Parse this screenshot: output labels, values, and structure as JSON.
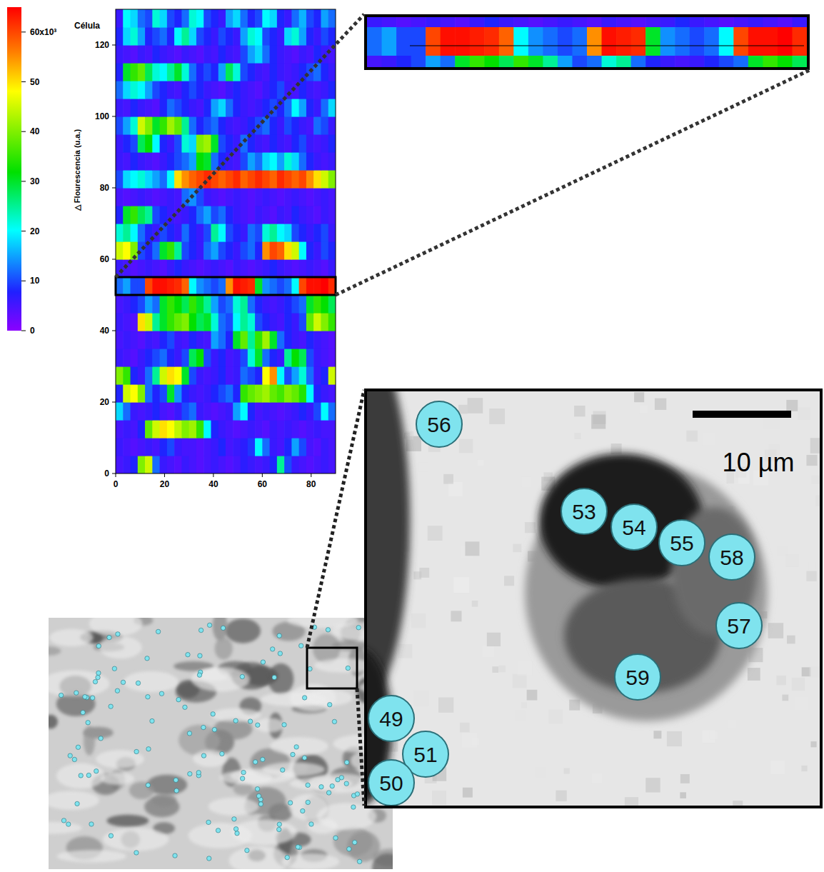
{
  "chart_data": {
    "type": "heatmap",
    "y_label": "Célula",
    "colorbar_label": "△ Flourescencia (u.a.)",
    "xlim": [
      0,
      90
    ],
    "xticks": [
      0,
      20,
      40,
      60,
      80
    ],
    "ylim": [
      0,
      130
    ],
    "yticks": [
      0,
      20,
      40,
      60,
      80,
      100,
      120
    ],
    "x_bins": [
      0,
      3,
      6,
      9,
      12,
      15,
      18,
      21,
      24,
      27,
      30,
      33,
      36,
      39,
      42,
      45,
      48,
      51,
      54,
      57,
      60,
      63,
      66,
      69,
      72,
      75,
      78,
      81,
      84,
      87,
      90
    ],
    "y_bins": [
      0,
      5,
      10,
      15,
      20,
      25,
      30,
      35,
      40,
      45,
      50,
      55,
      60,
      65,
      70,
      75,
      80,
      85,
      90,
      95,
      100,
      105,
      110,
      115,
      120,
      125,
      130
    ],
    "cells": [
      [
        5,
        6,
        8,
        40,
        45,
        12,
        6,
        5,
        4,
        6,
        5,
        4,
        5,
        6,
        5,
        4,
        5,
        7,
        6,
        5,
        6,
        8,
        25,
        10,
        6,
        5,
        4,
        5,
        6,
        5
      ],
      [
        6,
        5,
        4,
        5,
        6,
        5,
        8,
        10,
        6,
        5,
        5,
        4,
        5,
        6,
        8,
        5,
        6,
        7,
        9,
        20,
        12,
        6,
        5,
        8,
        15,
        10,
        5,
        4,
        6,
        5
      ],
      [
        5,
        6,
        5,
        8,
        38,
        45,
        50,
        48,
        44,
        40,
        42,
        35,
        20,
        8,
        6,
        5,
        4,
        5,
        6,
        5,
        4,
        6,
        5,
        6,
        5,
        4,
        5,
        6,
        5,
        5
      ],
      [
        18,
        12,
        6,
        5,
        6,
        8,
        5,
        4,
        6,
        10,
        12,
        6,
        5,
        4,
        5,
        6,
        15,
        20,
        8,
        5,
        6,
        5,
        4,
        5,
        6,
        8,
        6,
        10,
        20,
        12
      ],
      [
        8,
        45,
        48,
        40,
        12,
        8,
        10,
        30,
        14,
        8,
        6,
        5,
        6,
        8,
        10,
        12,
        8,
        35,
        38,
        40,
        42,
        38,
        36,
        40,
        38,
        34,
        20,
        8,
        6,
        5
      ],
      [
        40,
        35,
        8,
        6,
        12,
        25,
        45,
        50,
        48,
        30,
        10,
        6,
        5,
        6,
        8,
        5,
        6,
        12,
        10,
        8,
        48,
        55,
        20,
        10,
        15,
        22,
        12,
        6,
        8,
        45
      ],
      [
        6,
        5,
        4,
        6,
        8,
        10,
        12,
        8,
        6,
        10,
        28,
        32,
        10,
        6,
        8,
        5,
        6,
        10,
        22,
        30,
        12,
        8,
        6,
        25,
        32,
        28,
        10,
        6,
        5,
        4
      ],
      [
        5,
        6,
        5,
        4,
        6,
        5,
        8,
        10,
        6,
        5,
        8,
        6,
        5,
        15,
        12,
        8,
        30,
        38,
        25,
        35,
        42,
        30,
        12,
        8,
        6,
        5,
        8,
        6,
        5,
        4
      ],
      [
        6,
        5,
        4,
        50,
        45,
        25,
        30,
        35,
        38,
        40,
        32,
        28,
        30,
        22,
        12,
        10,
        20,
        25,
        22,
        10,
        8,
        6,
        5,
        8,
        6,
        10,
        38,
        45,
        40,
        35
      ],
      [
        5,
        6,
        8,
        10,
        15,
        12,
        30,
        35,
        32,
        28,
        35,
        30,
        25,
        15,
        10,
        12,
        22,
        25,
        12,
        8,
        6,
        5,
        6,
        8,
        10,
        12,
        30,
        35,
        32,
        28
      ],
      [
        12,
        15,
        10,
        10,
        60,
        64,
        64,
        63,
        62,
        58,
        20,
        14,
        12,
        10,
        12,
        55,
        64,
        63,
        62,
        30,
        14,
        12,
        10,
        12,
        20,
        60,
        64,
        64,
        65,
        62
      ],
      [
        6,
        5,
        4,
        5,
        6,
        5,
        4,
        6,
        8,
        6,
        5,
        4,
        5,
        6,
        5,
        4,
        6,
        5,
        4,
        5,
        6,
        8,
        6,
        5,
        4,
        5,
        6,
        5,
        4,
        6
      ],
      [
        45,
        48,
        40,
        10,
        8,
        12,
        30,
        35,
        25,
        10,
        8,
        6,
        12,
        15,
        10,
        8,
        6,
        10,
        12,
        8,
        55,
        60,
        58,
        50,
        45,
        20,
        8,
        6,
        10,
        8
      ],
      [
        22,
        25,
        20,
        12,
        8,
        6,
        10,
        8,
        6,
        12,
        8,
        6,
        10,
        25,
        20,
        10,
        8,
        6,
        12,
        10,
        22,
        25,
        20,
        18,
        10,
        8,
        6,
        8,
        10,
        6
      ],
      [
        8,
        30,
        35,
        28,
        25,
        10,
        8,
        6,
        5,
        6,
        8,
        12,
        15,
        10,
        12,
        8,
        6,
        5,
        4,
        6,
        5,
        4,
        6,
        5,
        8,
        6,
        5,
        4,
        6,
        5
      ],
      [
        5,
        4,
        5,
        6,
        5,
        4,
        5,
        6,
        5,
        12,
        14,
        10,
        6,
        5,
        4,
        5,
        6,
        5,
        4,
        5,
        6,
        5,
        4,
        5,
        6,
        5,
        4,
        5,
        6,
        5
      ],
      [
        10,
        18,
        20,
        22,
        18,
        15,
        12,
        20,
        50,
        55,
        58,
        60,
        62,
        60,
        58,
        60,
        62,
        58,
        60,
        62,
        60,
        58,
        62,
        60,
        58,
        60,
        55,
        50,
        45,
        40
      ],
      [
        6,
        5,
        8,
        6,
        5,
        4,
        6,
        8,
        10,
        12,
        15,
        32,
        30,
        12,
        8,
        6,
        5,
        10,
        15,
        12,
        18,
        20,
        15,
        22,
        18,
        12,
        8,
        6,
        5,
        6
      ],
      [
        6,
        8,
        10,
        28,
        32,
        20,
        8,
        6,
        10,
        22,
        18,
        40,
        42,
        30,
        10,
        8,
        6,
        12,
        8,
        6,
        5,
        8,
        6,
        5,
        8,
        10,
        6,
        5,
        6,
        8
      ],
      [
        10,
        15,
        22,
        45,
        40,
        30,
        35,
        42,
        38,
        25,
        12,
        8,
        10,
        12,
        8,
        6,
        5,
        6,
        8,
        10,
        12,
        8,
        6,
        10,
        8,
        6,
        5,
        12,
        10,
        6
      ],
      [
        6,
        5,
        8,
        6,
        5,
        4,
        8,
        12,
        10,
        8,
        6,
        5,
        8,
        15,
        18,
        12,
        8,
        6,
        5,
        6,
        8,
        10,
        8,
        12,
        20,
        15,
        8,
        6,
        12,
        18
      ],
      [
        12,
        18,
        22,
        20,
        15,
        10,
        8,
        6,
        5,
        8,
        10,
        8,
        6,
        5,
        4,
        6,
        8,
        6,
        5,
        4,
        6,
        8,
        10,
        6,
        5,
        8,
        6,
        5,
        6,
        8
      ],
      [
        8,
        30,
        35,
        38,
        28,
        22,
        20,
        25,
        30,
        22,
        12,
        8,
        10,
        8,
        15,
        28,
        22,
        10,
        8,
        6,
        5,
        8,
        6,
        5,
        6,
        8,
        10,
        12,
        8,
        6
      ],
      [
        6,
        5,
        4,
        6,
        5,
        8,
        6,
        5,
        4,
        6,
        5,
        4,
        6,
        5,
        8,
        6,
        5,
        10,
        15,
        18,
        12,
        8,
        6,
        5,
        4,
        6,
        5,
        8,
        6,
        5
      ],
      [
        8,
        18,
        22,
        15,
        8,
        10,
        12,
        8,
        20,
        25,
        18,
        10,
        8,
        6,
        10,
        8,
        6,
        15,
        22,
        20,
        10,
        8,
        6,
        18,
        22,
        15,
        8,
        6,
        10,
        8
      ],
      [
        6,
        20,
        18,
        12,
        10,
        22,
        18,
        10,
        8,
        12,
        22,
        20,
        10,
        8,
        6,
        15,
        18,
        12,
        8,
        10,
        20,
        18,
        8,
        6,
        12,
        16,
        10,
        8,
        15,
        12
      ]
    ],
    "colorbar_range": [
      0,
      65
    ],
    "colorbar_ticks": [
      0,
      10,
      20,
      30,
      40,
      50,
      {
        "value": 60,
        "label": "60x10³"
      }
    ],
    "highlight": [
      50,
      55
    ]
  },
  "micrograph": {
    "scale_bar": "10 µm",
    "labels": [
      "56",
      "53",
      "54",
      "55",
      "58",
      "57",
      "59",
      "49",
      "51",
      "50"
    ]
  }
}
